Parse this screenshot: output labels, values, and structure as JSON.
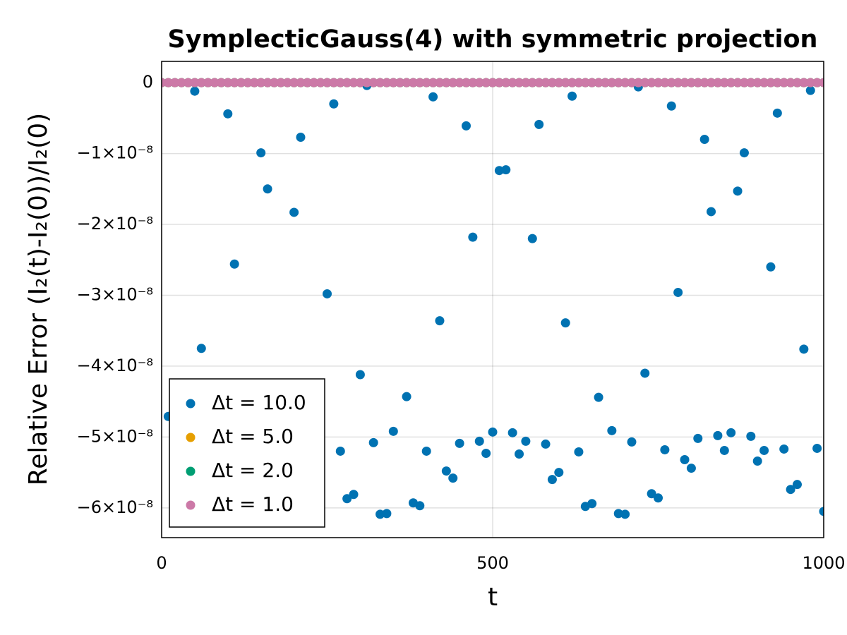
{
  "chart_data": {
    "type": "scatter",
    "title": "SymplecticGauss(4) with symmetric projection",
    "x_label": "t",
    "y_label": "Relative Error (I₂(t)-I₂(0))/I₂(0)",
    "xlim": [
      0,
      1000
    ],
    "xticks": [
      0,
      500,
      1000
    ],
    "ylim": [
      -6.42e-08,
      3e-09
    ],
    "yticks": [
      {
        "value": 0,
        "label": "0"
      },
      {
        "value": -1e-08,
        "label": "−1×10⁻⁸"
      },
      {
        "value": -2e-08,
        "label": "−2×10⁻⁸"
      },
      {
        "value": -3e-08,
        "label": "−3×10⁻⁸"
      },
      {
        "value": -4e-08,
        "label": "−4×10⁻⁸"
      },
      {
        "value": -5e-08,
        "label": "−5×10⁻⁸"
      },
      {
        "value": -6e-08,
        "label": "−6×10⁻⁸"
      }
    ],
    "grid": true,
    "legend": "lower left",
    "series": [
      {
        "name": "Δt = 10.0",
        "color": "#0072b2",
        "x": [
          10,
          50,
          60,
          100,
          110,
          150,
          160,
          200,
          210,
          250,
          260,
          270,
          280,
          290,
          300,
          310,
          320,
          330,
          340,
          350,
          360,
          370,
          380,
          390,
          400,
          410,
          420,
          430,
          440,
          450,
          460,
          470,
          480,
          490,
          500,
          510,
          520,
          530,
          540,
          550,
          560,
          570,
          580,
          590,
          600,
          610,
          620,
          630,
          640,
          650,
          660,
          670,
          680,
          690,
          700,
          710,
          720,
          730,
          740,
          750,
          760,
          770,
          780,
          790,
          800,
          810,
          820,
          830,
          840,
          850,
          860,
          870,
          880,
          890,
          900,
          910,
          920,
          930,
          940,
          950,
          960,
          970,
          980,
          990,
          1000
        ],
        "values": [
          -4.71e-08,
          -1.2e-09,
          -3.75e-08,
          -4.4e-09,
          -2.56e-08,
          -9.9e-09,
          -1.5e-08,
          -1.83e-08,
          -7.7e-09,
          -2.98e-08,
          -3e-09,
          -5.2e-08,
          -5.87e-08,
          -5.81e-08,
          -4.12e-08,
          -4e-10,
          -5.08e-08,
          -6.09e-08,
          -6.08e-08,
          -4.92e-08,
          0,
          -4.43e-08,
          -5.93e-08,
          -5.97e-08,
          -5.2e-08,
          -2e-09,
          -3.36e-08,
          -5.48e-08,
          -5.58e-08,
          -5.09e-08,
          -6.1e-09,
          -2.18e-08,
          -5.06e-08,
          -5.23e-08,
          -4.93e-08,
          -1.24e-08,
          -1.23e-08,
          -4.94e-08,
          -5.24e-08,
          -5.06e-08,
          -2.2e-08,
          -5.9e-09,
          -5.1e-08,
          -5.6e-08,
          -5.5e-08,
          -3.39e-08,
          -1.9e-09,
          -5.21e-08,
          -5.98e-08,
          -5.94e-08,
          -4.44e-08,
          0,
          -4.91e-08,
          -6.08e-08,
          -6.09e-08,
          -5.07e-08,
          -6e-10,
          -4.1e-08,
          -5.8e-08,
          -5.86e-08,
          -5.18e-08,
          -3.3e-09,
          -2.96e-08,
          -5.32e-08,
          -5.44e-08,
          -5.02e-08,
          -8e-09,
          -1.82e-08,
          -4.98e-08,
          -5.19e-08,
          -4.94e-08,
          -1.53e-08,
          -9.9e-09,
          -4.99e-08,
          -5.34e-08,
          -5.19e-08,
          -2.6e-08,
          -4.3e-09,
          -5.17e-08,
          -5.74e-08,
          -5.67e-08,
          -3.76e-08,
          -1.1e-09,
          -5.16e-08,
          -6.05e-08
        ]
      },
      {
        "name": "Δt = 5.0",
        "color": "#e69f00",
        "x": [
          0,
          10,
          20,
          30,
          40,
          50,
          60,
          70,
          80,
          90,
          100,
          110,
          120,
          130,
          140,
          150,
          160,
          170,
          180,
          190,
          200,
          210,
          220,
          230,
          240,
          250,
          260,
          270,
          280,
          290,
          300,
          310,
          320,
          330,
          340,
          350,
          360,
          370,
          380,
          390,
          400,
          410,
          420,
          430,
          440,
          450,
          460,
          470,
          480,
          490,
          500,
          510,
          520,
          530,
          540,
          550,
          560,
          570,
          580,
          590,
          600,
          610,
          620,
          630,
          640,
          650,
          660,
          670,
          680,
          690,
          700,
          710,
          720,
          730,
          740,
          750,
          760,
          770,
          780,
          790,
          800,
          810,
          820,
          830,
          840,
          850,
          860,
          870,
          880,
          890,
          900,
          910,
          920,
          930,
          940,
          950,
          960,
          970,
          980,
          990,
          1000
        ],
        "values": [
          0,
          0,
          0,
          0,
          0,
          0,
          0,
          0,
          0,
          0,
          0,
          0,
          0,
          0,
          0,
          0,
          0,
          0,
          0,
          0,
          0,
          0,
          0,
          0,
          0,
          0,
          0,
          0,
          0,
          0,
          0,
          0,
          0,
          0,
          0,
          0,
          0,
          0,
          0,
          0,
          0,
          0,
          0,
          0,
          0,
          0,
          0,
          0,
          0,
          0,
          0,
          0,
          0,
          0,
          0,
          0,
          0,
          0,
          0,
          0,
          0,
          0,
          0,
          0,
          0,
          0,
          0,
          0,
          0,
          0,
          0,
          0,
          0,
          0,
          0,
          0,
          0,
          0,
          0,
          0,
          0,
          0,
          0,
          0,
          0,
          0,
          0,
          0,
          0,
          0,
          0,
          0,
          0,
          0,
          0,
          0,
          0,
          0,
          0,
          0,
          0
        ]
      },
      {
        "name": "Δt = 2.0",
        "color": "#009e73",
        "x": [
          0,
          10,
          20,
          30,
          40,
          50,
          60,
          70,
          80,
          90,
          100,
          110,
          120,
          130,
          140,
          150,
          160,
          170,
          180,
          190,
          200,
          210,
          220,
          230,
          240,
          250,
          260,
          270,
          280,
          290,
          300,
          310,
          320,
          330,
          340,
          350,
          360,
          370,
          380,
          390,
          400,
          410,
          420,
          430,
          440,
          450,
          460,
          470,
          480,
          490,
          500,
          510,
          520,
          530,
          540,
          550,
          560,
          570,
          580,
          590,
          600,
          610,
          620,
          630,
          640,
          650,
          660,
          670,
          680,
          690,
          700,
          710,
          720,
          730,
          740,
          750,
          760,
          770,
          780,
          790,
          800,
          810,
          820,
          830,
          840,
          850,
          860,
          870,
          880,
          890,
          900,
          910,
          920,
          930,
          940,
          950,
          960,
          970,
          980,
          990,
          1000
        ],
        "values": [
          0,
          0,
          0,
          0,
          0,
          0,
          0,
          0,
          0,
          0,
          0,
          0,
          0,
          0,
          0,
          0,
          0,
          0,
          0,
          0,
          0,
          0,
          0,
          0,
          0,
          0,
          0,
          0,
          0,
          0,
          0,
          0,
          0,
          0,
          0,
          0,
          0,
          0,
          0,
          0,
          0,
          0,
          0,
          0,
          0,
          0,
          0,
          0,
          0,
          0,
          0,
          0,
          0,
          0,
          0,
          0,
          0,
          0,
          0,
          0,
          0,
          0,
          0,
          0,
          0,
          0,
          0,
          0,
          0,
          0,
          0,
          0,
          0,
          0,
          0,
          0,
          0,
          0,
          0,
          0,
          0,
          0,
          0,
          0,
          0,
          0,
          0,
          0,
          0,
          0,
          0,
          0,
          0,
          0,
          0,
          0,
          0,
          0,
          0,
          0,
          0
        ]
      },
      {
        "name": "Δt = 1.0",
        "color": "#cc79a7",
        "x": [
          0,
          10,
          20,
          30,
          40,
          50,
          60,
          70,
          80,
          90,
          100,
          110,
          120,
          130,
          140,
          150,
          160,
          170,
          180,
          190,
          200,
          210,
          220,
          230,
          240,
          250,
          260,
          270,
          280,
          290,
          300,
          310,
          320,
          330,
          340,
          350,
          360,
          370,
          380,
          390,
          400,
          410,
          420,
          430,
          440,
          450,
          460,
          470,
          480,
          490,
          500,
          510,
          520,
          530,
          540,
          550,
          560,
          570,
          580,
          590,
          600,
          610,
          620,
          630,
          640,
          650,
          660,
          670,
          680,
          690,
          700,
          710,
          720,
          730,
          740,
          750,
          760,
          770,
          780,
          790,
          800,
          810,
          820,
          830,
          840,
          850,
          860,
          870,
          880,
          890,
          900,
          910,
          920,
          930,
          940,
          950,
          960,
          970,
          980,
          990,
          1000
        ],
        "values": [
          0,
          0,
          0,
          0,
          0,
          0,
          0,
          0,
          0,
          0,
          0,
          0,
          0,
          0,
          0,
          0,
          0,
          0,
          0,
          0,
          0,
          0,
          0,
          0,
          0,
          0,
          0,
          0,
          0,
          0,
          0,
          0,
          0,
          0,
          0,
          0,
          0,
          0,
          0,
          0,
          0,
          0,
          0,
          0,
          0,
          0,
          0,
          0,
          0,
          0,
          0,
          0,
          0,
          0,
          0,
          0,
          0,
          0,
          0,
          0,
          0,
          0,
          0,
          0,
          0,
          0,
          0,
          0,
          0,
          0,
          0,
          0,
          0,
          0,
          0,
          0,
          0,
          0,
          0,
          0,
          0,
          0,
          0,
          0,
          0,
          0,
          0,
          0,
          0,
          0,
          0,
          0,
          0,
          0,
          0,
          0,
          0,
          0,
          0,
          0,
          0
        ]
      }
    ]
  }
}
